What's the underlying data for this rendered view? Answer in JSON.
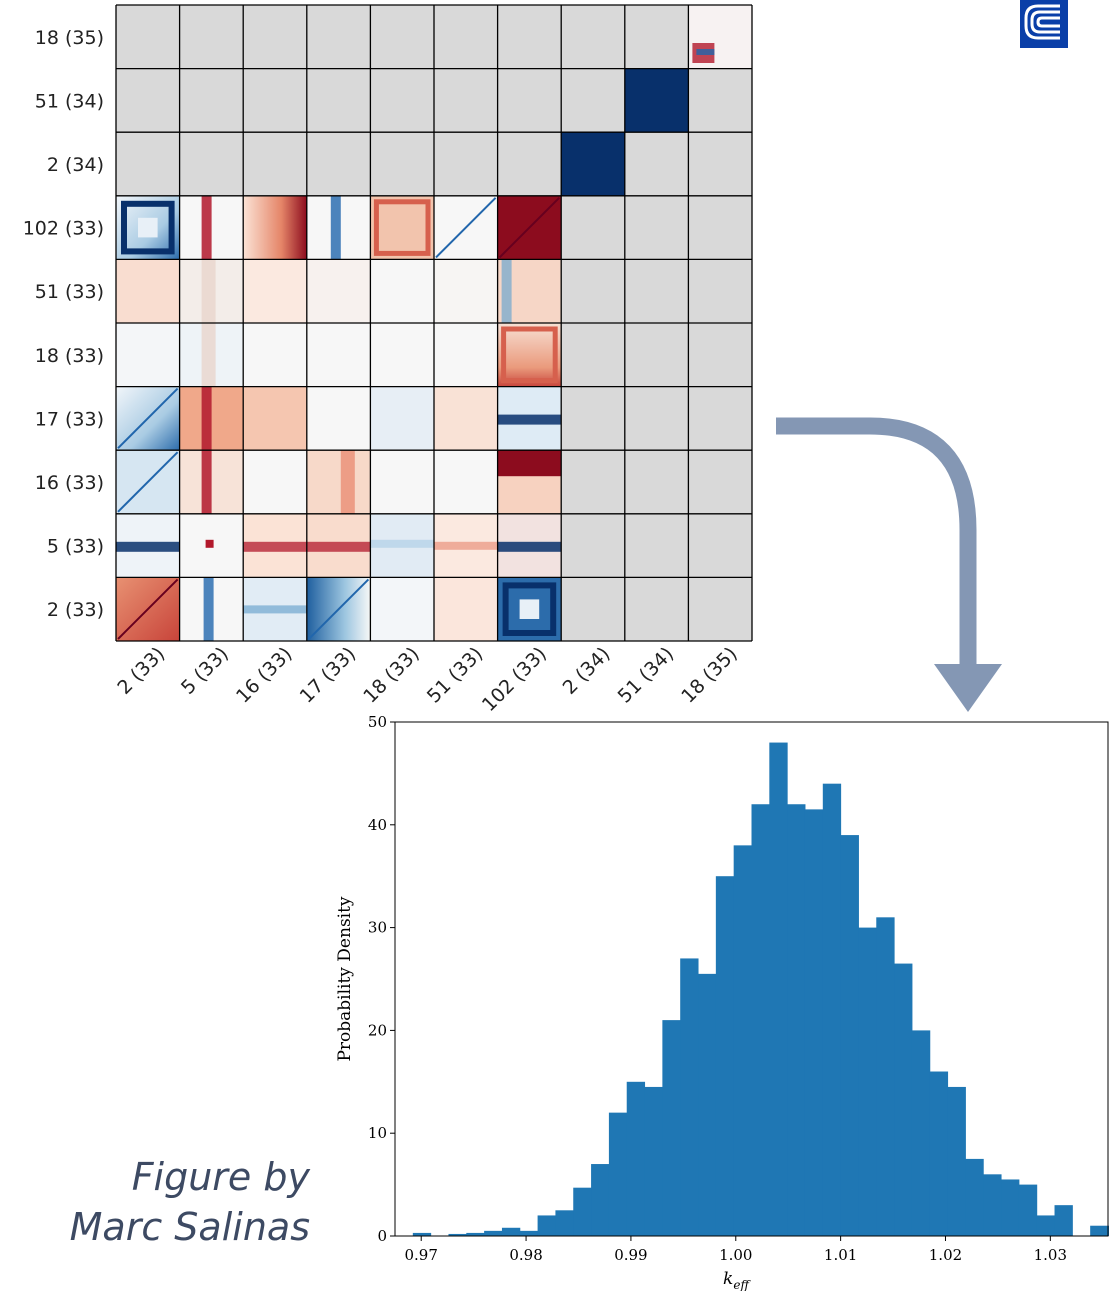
{
  "logo_icon": "lab-logo-icon",
  "caption": {
    "line1": "Figure by",
    "line2": "Marc Salinas"
  },
  "arrow": {
    "icon": "curved-arrow-down-icon",
    "color": "#8497b4"
  },
  "chart_data": [
    {
      "type": "heatmap",
      "title": "",
      "row_labels": [
        "18 (35)",
        "51 (34)",
        "2 (34)",
        "102 (33)",
        "51 (33)",
        "18 (33)",
        "17 (33)",
        "16 (33)",
        "5 (33)",
        "2 (33)"
      ],
      "col_labels": [
        "2 (33)",
        "5 (33)",
        "16 (33)",
        "17 (33)",
        "18 (33)",
        "51 (33)",
        "102 (33)",
        "2 (34)",
        "51 (34)",
        "18 (35)"
      ],
      "colormap": "RdBu",
      "empty_color": "#d9d9d9",
      "grid": true
    },
    {
      "type": "bar",
      "subtype": "histogram",
      "title": "",
      "xlabel": "k_eff",
      "ylabel": "Probability Density",
      "xlim": [
        0.9675,
        1.0355
      ],
      "ylim": [
        0,
        50
      ],
      "xticks": [
        "0.97",
        "0.98",
        "0.99",
        "1.00",
        "1.01",
        "1.02",
        "1.03"
      ],
      "xtick_values": [
        0.97,
        0.98,
        0.99,
        1.0,
        1.01,
        1.02,
        1.03
      ],
      "yticks": [
        "0",
        "10",
        "20",
        "30",
        "40",
        "50"
      ],
      "ytick_values": [
        0,
        10,
        20,
        30,
        40,
        50
      ],
      "bar_color": "#1f77b4",
      "bin_start": 0.9675,
      "bin_width": 0.0017,
      "values": [
        0,
        0.3,
        0,
        0.2,
        0.3,
        0.5,
        0.8,
        0.5,
        2,
        2.5,
        4.7,
        7,
        12,
        15,
        14.5,
        21,
        27,
        25.5,
        35,
        38,
        42,
        48,
        42,
        41.5,
        44,
        39,
        30,
        31,
        26.5,
        20,
        16,
        14.5,
        7.5,
        6,
        5.5,
        5,
        2,
        3,
        0,
        1,
        1,
        0
      ]
    }
  ]
}
